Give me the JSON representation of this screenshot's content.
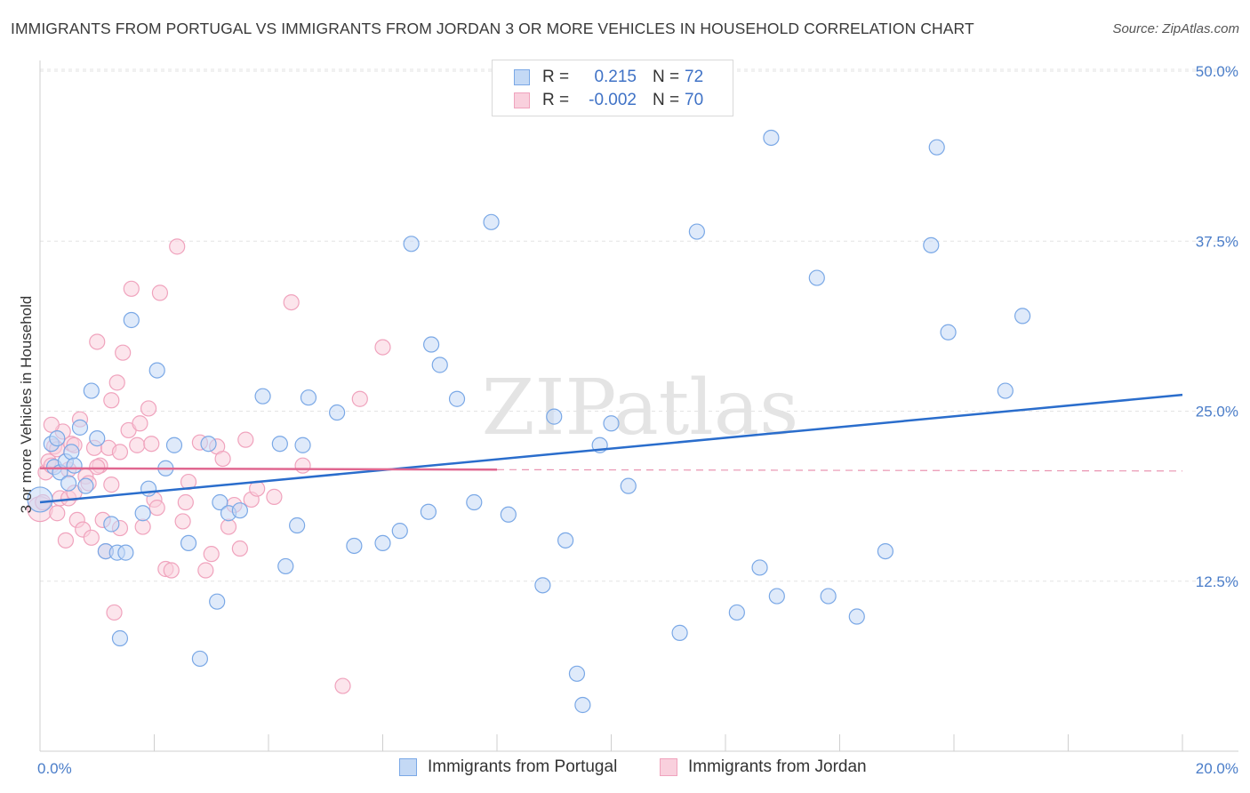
{
  "chart_data": {
    "type": "scatter",
    "title": "IMMIGRANTS FROM PORTUGAL VS IMMIGRANTS FROM JORDAN 3 OR MORE VEHICLES IN HOUSEHOLD CORRELATION CHART",
    "source": "Source: ZipAtlas.com",
    "ylabel": "3 or more Vehicles in Household",
    "xlim": [
      0,
      20
    ],
    "ylim": [
      0,
      50
    ],
    "x_tick_labels": [
      "0.0%",
      "20.0%"
    ],
    "y_tick_labels": [
      "12.5%",
      "25.0%",
      "37.5%",
      "50.0%"
    ],
    "y_tick_values": [
      12.5,
      25.0,
      37.5,
      50.0
    ],
    "watermark": "ZIPatlas",
    "legend": {
      "rows": [
        {
          "r_label": "R =",
          "r_value": "0.215",
          "n_label": "N =",
          "n_value": "72"
        },
        {
          "r_label": "R =",
          "r_value": "-0.002",
          "n_label": "N =",
          "n_value": "70"
        }
      ]
    },
    "series": [
      {
        "name": "Immigrants from Portugal",
        "color": "#7aa8e6",
        "fill": "#c4d9f5",
        "trend_color": "#2a6dcc",
        "trend": {
          "x0": 0.0,
          "y0": 18.3,
          "x1": 20.0,
          "y1": 26.2
        },
        "points": [
          [
            0.0,
            18.5
          ],
          [
            0.2,
            22.6
          ],
          [
            0.25,
            20.9
          ],
          [
            0.3,
            23.0
          ],
          [
            0.35,
            20.5
          ],
          [
            0.45,
            21.3
          ],
          [
            0.5,
            19.7
          ],
          [
            0.55,
            22.0
          ],
          [
            0.6,
            21.0
          ],
          [
            0.7,
            23.8
          ],
          [
            0.8,
            19.5
          ],
          [
            0.9,
            26.5
          ],
          [
            1.0,
            23.0
          ],
          [
            1.15,
            14.7
          ],
          [
            1.25,
            16.7
          ],
          [
            1.35,
            14.6
          ],
          [
            1.4,
            8.3
          ],
          [
            1.5,
            14.6
          ],
          [
            1.6,
            31.7
          ],
          [
            1.8,
            17.5
          ],
          [
            1.9,
            19.3
          ],
          [
            2.05,
            28.0
          ],
          [
            2.2,
            20.8
          ],
          [
            2.35,
            22.5
          ],
          [
            2.6,
            15.3
          ],
          [
            2.8,
            6.8
          ],
          [
            2.95,
            22.6
          ],
          [
            3.1,
            11.0
          ],
          [
            3.15,
            18.3
          ],
          [
            3.3,
            17.5
          ],
          [
            3.5,
            17.7
          ],
          [
            3.9,
            26.1
          ],
          [
            4.2,
            22.6
          ],
          [
            4.3,
            13.6
          ],
          [
            4.5,
            16.6
          ],
          [
            4.6,
            22.5
          ],
          [
            4.7,
            26.0
          ],
          [
            5.2,
            24.9
          ],
          [
            5.5,
            15.1
          ],
          [
            6.0,
            15.3
          ],
          [
            6.3,
            16.2
          ],
          [
            6.5,
            37.3
          ],
          [
            6.8,
            17.6
          ],
          [
            6.85,
            29.9
          ],
          [
            7.0,
            28.4
          ],
          [
            7.3,
            25.9
          ],
          [
            7.6,
            18.3
          ],
          [
            7.9,
            38.9
          ],
          [
            8.2,
            17.4
          ],
          [
            8.8,
            12.2
          ],
          [
            9.0,
            24.6
          ],
          [
            9.2,
            15.5
          ],
          [
            9.4,
            5.7
          ],
          [
            9.5,
            3.4
          ],
          [
            9.8,
            22.5
          ],
          [
            10.0,
            24.1
          ],
          [
            10.3,
            19.5
          ],
          [
            11.2,
            8.7
          ],
          [
            11.5,
            38.2
          ],
          [
            12.2,
            10.2
          ],
          [
            12.6,
            13.5
          ],
          [
            12.8,
            45.1
          ],
          [
            12.9,
            11.4
          ],
          [
            13.6,
            34.8
          ],
          [
            13.8,
            11.4
          ],
          [
            14.3,
            9.9
          ],
          [
            14.8,
            14.7
          ],
          [
            15.6,
            37.2
          ],
          [
            15.7,
            44.4
          ],
          [
            15.9,
            30.8
          ],
          [
            16.9,
            26.5
          ],
          [
            17.2,
            32.0
          ]
        ]
      },
      {
        "name": "Immigrants from Jordan",
        "color": "#f0a3bd",
        "fill": "#f9d0dd",
        "trend_color": "#e06790",
        "trend": {
          "x0": 0.0,
          "y0": 20.8,
          "x1": 8.0,
          "y1": 20.7
        },
        "trend_dashed": {
          "x0": 8.0,
          "y0": 20.7,
          "x1": 20.0,
          "y1": 20.6
        },
        "points": [
          [
            0.0,
            17.8
          ],
          [
            0.05,
            18.3
          ],
          [
            0.1,
            20.5
          ],
          [
            0.15,
            21.3
          ],
          [
            0.2,
            21.0
          ],
          [
            0.25,
            22.4
          ],
          [
            0.3,
            22.2
          ],
          [
            0.35,
            18.6
          ],
          [
            0.4,
            23.5
          ],
          [
            0.45,
            15.5
          ],
          [
            0.5,
            18.6
          ],
          [
            0.55,
            22.6
          ],
          [
            0.6,
            22.5
          ],
          [
            0.65,
            17.0
          ],
          [
            0.7,
            24.4
          ],
          [
            0.75,
            16.3
          ],
          [
            0.8,
            20.2
          ],
          [
            0.85,
            19.7
          ],
          [
            0.9,
            15.7
          ],
          [
            0.95,
            22.3
          ],
          [
            1.0,
            30.1
          ],
          [
            1.05,
            21.0
          ],
          [
            1.1,
            17.0
          ],
          [
            1.15,
            14.7
          ],
          [
            1.2,
            22.3
          ],
          [
            1.25,
            19.6
          ],
          [
            1.3,
            10.2
          ],
          [
            1.35,
            27.1
          ],
          [
            1.4,
            16.4
          ],
          [
            1.45,
            29.3
          ],
          [
            1.55,
            23.6
          ],
          [
            1.6,
            34.0
          ],
          [
            1.7,
            22.5
          ],
          [
            1.75,
            24.1
          ],
          [
            1.8,
            16.5
          ],
          [
            1.9,
            25.2
          ],
          [
            1.95,
            22.6
          ],
          [
            2.0,
            18.5
          ],
          [
            2.05,
            17.9
          ],
          [
            2.1,
            33.7
          ],
          [
            2.2,
            13.4
          ],
          [
            2.3,
            13.3
          ],
          [
            2.4,
            37.1
          ],
          [
            2.5,
            16.9
          ],
          [
            2.55,
            18.3
          ],
          [
            2.8,
            22.7
          ],
          [
            2.9,
            13.3
          ],
          [
            3.0,
            14.5
          ],
          [
            3.1,
            22.4
          ],
          [
            3.2,
            21.5
          ],
          [
            3.4,
            18.1
          ],
          [
            3.5,
            14.9
          ],
          [
            3.6,
            22.9
          ],
          [
            3.7,
            18.5
          ],
          [
            3.8,
            19.3
          ],
          [
            4.1,
            18.7
          ],
          [
            4.4,
            33.0
          ],
          [
            5.3,
            4.8
          ],
          [
            5.6,
            25.9
          ],
          [
            6.0,
            29.7
          ],
          [
            0.3,
            17.5
          ],
          [
            0.6,
            19.0
          ],
          [
            1.0,
            20.9
          ],
          [
            1.4,
            22.0
          ],
          [
            0.2,
            24.0
          ],
          [
            0.5,
            20.7
          ],
          [
            2.6,
            19.8
          ],
          [
            3.3,
            16.5
          ],
          [
            4.6,
            21.0
          ],
          [
            1.25,
            25.8
          ]
        ]
      }
    ]
  }
}
